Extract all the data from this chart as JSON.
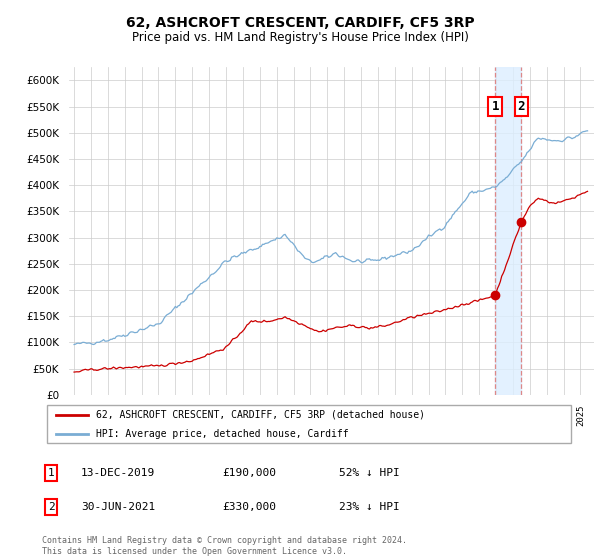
{
  "title": "62, ASHCROFT CRESCENT, CARDIFF, CF5 3RP",
  "subtitle": "Price paid vs. HM Land Registry's House Price Index (HPI)",
  "ytick_values": [
    0,
    50000,
    100000,
    150000,
    200000,
    250000,
    300000,
    350000,
    400000,
    450000,
    500000,
    550000,
    600000
  ],
  "ylim": [
    0,
    625000
  ],
  "xlim_left": 1994.7,
  "xlim_right": 2025.8,
  "hpi_color": "#7aadd4",
  "red_color": "#cc0000",
  "grid_color": "#cccccc",
  "background_color": "#ffffff",
  "vline_color": "#dd8888",
  "vshade_color": "#ddeeff",
  "sale1_x": 2019.95,
  "sale1_y": 190000,
  "sale1_label": "1",
  "sale2_x": 2021.5,
  "sale2_y": 330000,
  "sale2_label": "2",
  "legend1_text": "62, ASHCROFT CRESCENT, CARDIFF, CF5 3RP (detached house)",
  "legend2_text": "HPI: Average price, detached house, Cardiff",
  "table_rows": [
    {
      "label": "1",
      "date": "13-DEC-2019",
      "price": "£190,000",
      "hpi": "52% ↓ HPI"
    },
    {
      "label": "2",
      "date": "30-JUN-2021",
      "price": "£330,000",
      "hpi": "23% ↓ HPI"
    }
  ],
  "footnote": "Contains HM Land Registry data © Crown copyright and database right 2024.\nThis data is licensed under the Open Government Licence v3.0."
}
